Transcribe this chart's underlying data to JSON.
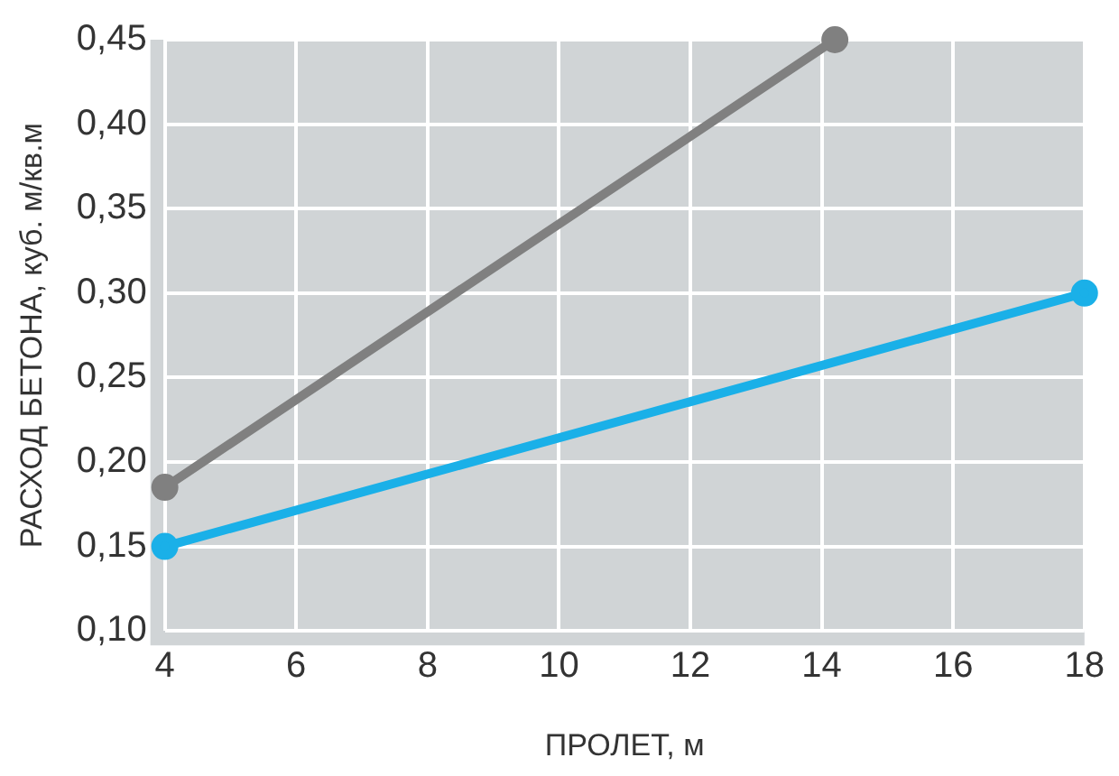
{
  "chart_data": {
    "type": "line",
    "xlabel": "ПРОЛЕТ, м",
    "ylabel": "РАСХОД БЕТОНА, куб. м/кв.м",
    "series": [
      {
        "color": "#808080",
        "x": [
          4,
          14.2
        ],
        "values": [
          0.185,
          0.45
        ]
      },
      {
        "color": "#1ab0e8",
        "x": [
          4,
          18
        ],
        "values": [
          0.15,
          0.3
        ]
      }
    ],
    "xlim": [
      4,
      18
    ],
    "xticks": [
      4,
      6,
      8,
      10,
      12,
      14,
      16,
      18
    ],
    "ylim": [
      0.1,
      0.45
    ],
    "yticks": [
      {
        "value": 0.1,
        "label": "0,10"
      },
      {
        "value": 0.15,
        "label": "0,15"
      },
      {
        "value": 0.2,
        "label": "0,20"
      },
      {
        "value": 0.25,
        "label": "0,25"
      },
      {
        "value": 0.3,
        "label": "0,30"
      },
      {
        "value": 0.35,
        "label": "0,35"
      },
      {
        "value": 0.4,
        "label": "0,40"
      },
      {
        "value": 0.45,
        "label": "0,45"
      }
    ],
    "grid": true,
    "marker": "circle",
    "line_style": "solid",
    "legend": false
  }
}
